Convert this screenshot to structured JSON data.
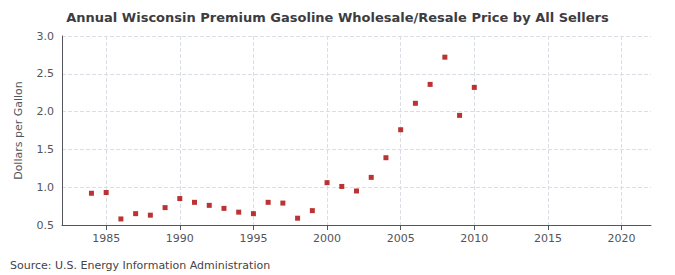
{
  "chart_data": {
    "type": "scatter",
    "title": "Annual Wisconsin Premium Gasoline Wholesale/Resale Price by All Sellers",
    "ylabel": "Dollars per Gallon",
    "annotations": [
      "Source: U.S. Energy Information Administration"
    ],
    "x": [
      1984,
      1985,
      1986,
      1987,
      1988,
      1989,
      1990,
      1991,
      1992,
      1993,
      1994,
      1995,
      1996,
      1997,
      1998,
      1999,
      2000,
      2001,
      2002,
      2003,
      2004,
      2005,
      2006,
      2007,
      2008,
      2009,
      2010
    ],
    "values": [
      0.92,
      0.93,
      0.58,
      0.65,
      0.63,
      0.73,
      0.85,
      0.8,
      0.76,
      0.72,
      0.67,
      0.65,
      0.8,
      0.79,
      0.59,
      0.69,
      1.06,
      1.01,
      0.95,
      1.13,
      1.39,
      1.76,
      2.11,
      2.36,
      2.72,
      1.95,
      2.32
    ],
    "color": "#aa0000",
    "marker": "square",
    "xlim": [
      1982,
      2022
    ],
    "xticks": [
      1985,
      1990,
      1995,
      2000,
      2005,
      2010,
      2015,
      2020
    ],
    "ylim": [
      0.5,
      3.0
    ],
    "yticks": [
      0.5,
      {
        "value": 1.0,
        "label": "1.0"
      },
      1.5,
      {
        "value": 2.0,
        "label": "2.0"
      },
      2.5,
      {
        "value": 3.0,
        "label": "3.0"
      }
    ],
    "grid": true
  }
}
